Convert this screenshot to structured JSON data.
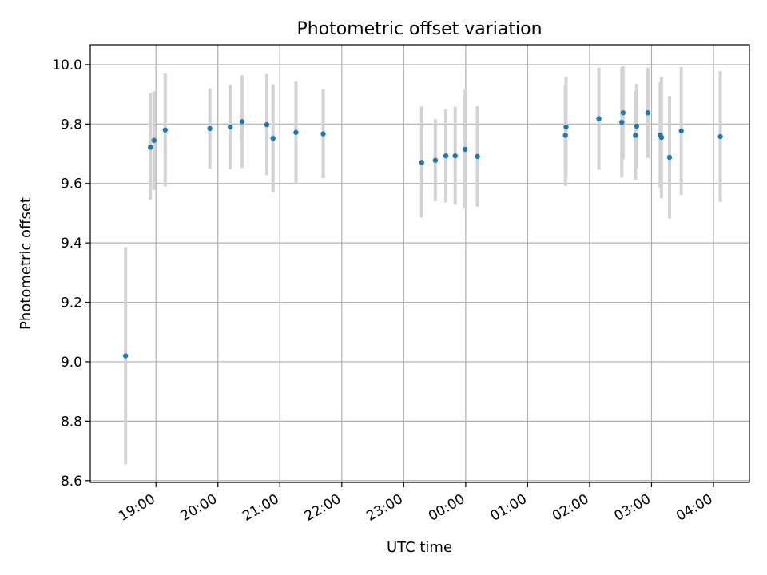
{
  "chart_data": {
    "type": "scatter",
    "title": "Photometric offset variation",
    "xlabel": "UTC time",
    "ylabel": "Photometric offset",
    "x_tick_labels": [
      "19:00",
      "20:00",
      "21:00",
      "22:00",
      "23:00",
      "00:00",
      "01:00",
      "02:00",
      "03:00",
      "04:00"
    ],
    "y_tick_labels": [
      "8.6",
      "8.8",
      "9.0",
      "9.2",
      "9.4",
      "9.6",
      "9.8",
      "10.0"
    ],
    "x_ticks_hours": [
      19,
      20,
      21,
      22,
      23,
      24,
      25,
      26,
      27,
      28
    ],
    "y_ticks": [
      8.6,
      8.8,
      9.0,
      9.2,
      9.4,
      9.6,
      9.8,
      10.0
    ],
    "xlim_hours": [
      17.94,
      28.58
    ],
    "ylim": [
      8.594,
      10.067
    ],
    "grid": true,
    "colors": {
      "point": "#1f77b4",
      "errorbar": "#d3d3d3",
      "grid": "#b0b0b0"
    },
    "series": [
      {
        "points": [
          {
            "x": 18.51,
            "y": 9.02,
            "low": 8.655,
            "high": 9.385
          },
          {
            "x": 18.91,
            "y": 9.722,
            "low": 9.545,
            "high": 9.905
          },
          {
            "x": 18.97,
            "y": 9.745,
            "low": 9.578,
            "high": 9.91
          },
          {
            "x": 19.15,
            "y": 9.78,
            "low": 9.59,
            "high": 9.97
          },
          {
            "x": 19.87,
            "y": 9.785,
            "low": 9.65,
            "high": 9.92
          },
          {
            "x": 20.2,
            "y": 9.79,
            "low": 9.648,
            "high": 9.932
          },
          {
            "x": 20.39,
            "y": 9.808,
            "low": 9.652,
            "high": 9.964
          },
          {
            "x": 20.79,
            "y": 9.798,
            "low": 9.628,
            "high": 9.968
          },
          {
            "x": 20.89,
            "y": 9.752,
            "low": 9.57,
            "high": 9.934
          },
          {
            "x": 21.26,
            "y": 9.772,
            "low": 9.6,
            "high": 9.944
          },
          {
            "x": 21.7,
            "y": 9.767,
            "low": 9.618,
            "high": 9.916
          },
          {
            "x": 23.29,
            "y": 9.671,
            "low": 9.485,
            "high": 9.859
          },
          {
            "x": 23.51,
            "y": 9.678,
            "low": 9.54,
            "high": 9.816
          },
          {
            "x": 23.68,
            "y": 9.693,
            "low": 9.536,
            "high": 9.85
          },
          {
            "x": 23.83,
            "y": 9.693,
            "low": 9.528,
            "high": 9.858
          },
          {
            "x": 23.99,
            "y": 9.715,
            "low": 9.515,
            "high": 9.915
          },
          {
            "x": 24.19,
            "y": 9.691,
            "low": 9.522,
            "high": 9.86
          },
          {
            "x": 25.61,
            "y": 9.762,
            "low": 9.592,
            "high": 9.932
          },
          {
            "x": 25.62,
            "y": 9.79,
            "low": 9.62,
            "high": 9.96
          },
          {
            "x": 26.15,
            "y": 9.818,
            "low": 9.646,
            "high": 9.99
          },
          {
            "x": 26.52,
            "y": 9.806,
            "low": 9.62,
            "high": 9.992
          },
          {
            "x": 26.54,
            "y": 9.838,
            "low": 9.682,
            "high": 9.994
          },
          {
            "x": 26.74,
            "y": 9.762,
            "low": 9.613,
            "high": 9.911
          },
          {
            "x": 26.76,
            "y": 9.793,
            "low": 9.651,
            "high": 9.935
          },
          {
            "x": 26.94,
            "y": 9.838,
            "low": 9.686,
            "high": 9.99
          },
          {
            "x": 27.14,
            "y": 9.763,
            "low": 9.585,
            "high": 9.941
          },
          {
            "x": 27.16,
            "y": 9.755,
            "low": 9.55,
            "high": 9.96
          },
          {
            "x": 27.29,
            "y": 9.688,
            "low": 9.482,
            "high": 9.894
          },
          {
            "x": 27.48,
            "y": 9.777,
            "low": 9.562,
            "high": 9.992
          },
          {
            "x": 28.11,
            "y": 9.758,
            "low": 9.538,
            "high": 9.978
          }
        ]
      }
    ]
  }
}
